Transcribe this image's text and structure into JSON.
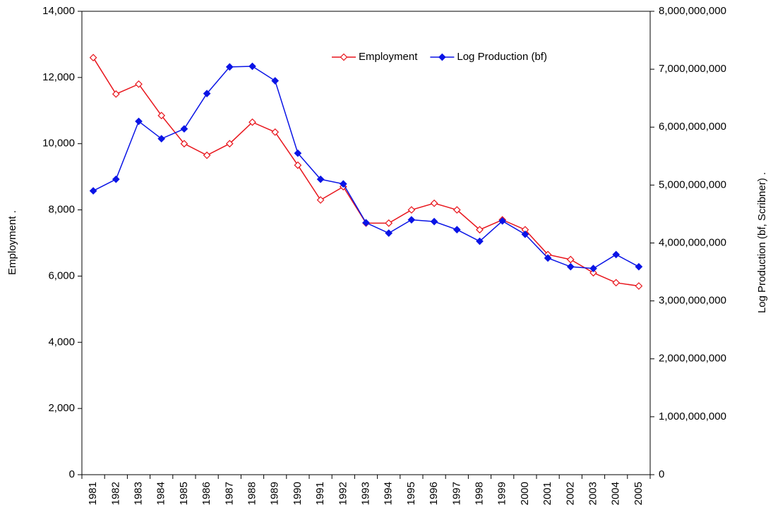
{
  "chart_data": {
    "type": "line",
    "categories": [
      "1981",
      "1982",
      "1983",
      "1984",
      "1985",
      "1986",
      "1987",
      "1988",
      "1989",
      "1990",
      "1991",
      "1992",
      "1993",
      "1994",
      "1995",
      "1996",
      "1997",
      "1998",
      "1999",
      "2000",
      "2001",
      "2002",
      "2003",
      "2004",
      "2005"
    ],
    "series": [
      {
        "name": "Employment",
        "color": "#e8141b",
        "marker": "hollow-diamond",
        "axis": "y",
        "values": [
          12600,
          11500,
          11800,
          10850,
          10000,
          9650,
          10000,
          10650,
          10350,
          9350,
          8300,
          8700,
          7600,
          7600,
          8000,
          8200,
          8000,
          7400,
          7700,
          7400,
          6650,
          6500,
          6100,
          5800,
          5700
        ]
      },
      {
        "name": "Log Production (bf)",
        "color": "#0a14e6",
        "marker": "filled-diamond",
        "axis": "y2",
        "values": [
          4900000000,
          5100000000,
          6100000000,
          5800000000,
          5970000000,
          6580000000,
          7040000000,
          7050000000,
          6800000000,
          5550000000,
          5100000000,
          5020000000,
          4350000000,
          4170000000,
          4400000000,
          4370000000,
          4230000000,
          4030000000,
          4380000000,
          4150000000,
          3740000000,
          3590000000,
          3560000000,
          3800000000,
          3590000000
        ]
      }
    ],
    "ylabel": "Employment   .",
    "y2label": "Log Production (bf, Scribner)   .",
    "ylim": [
      0,
      14000
    ],
    "yticks": [
      0,
      {
        "value": 2000,
        "label": "2,000"
      },
      {
        "value": 4000,
        "label": "4,000"
      },
      {
        "value": 6000,
        "label": "6,000"
      },
      {
        "value": 8000,
        "label": "8,000"
      },
      {
        "value": 10000,
        "label": "10,000"
      },
      {
        "value": 12000,
        "label": "12,000"
      },
      {
        "value": 14000,
        "label": "14,000"
      }
    ],
    "y2lim": [
      0,
      8000000000
    ],
    "y2ticks": [
      0,
      {
        "value": 1000000000,
        "label": "1,000,000,000"
      },
      {
        "value": 2000000000,
        "label": "2,000,000,000"
      },
      {
        "value": 3000000000,
        "label": "3,000,000,000"
      },
      {
        "value": 4000000000,
        "label": "4,000,000,000"
      },
      {
        "value": 5000000000,
        "label": "5,000,000,000"
      },
      {
        "value": 6000000000,
        "label": "6,000,000,000"
      },
      {
        "value": 7000000000,
        "label": "7,000,000,000"
      },
      {
        "value": 8000000000,
        "label": "8,000,000,000"
      }
    ],
    "legend": "top-right",
    "grid": false
  }
}
